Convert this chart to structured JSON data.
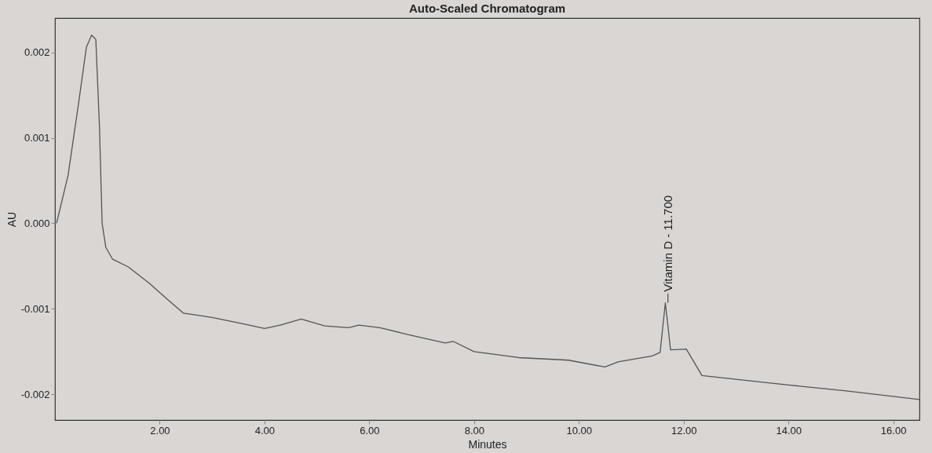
{
  "chart_data": {
    "type": "line",
    "title": "Auto-Scaled Chromatogram",
    "xlabel": "Minutes",
    "ylabel": "AU",
    "xlim": [
      0,
      16.5
    ],
    "ylim": [
      -0.0023,
      0.0024
    ],
    "xticks": [
      {
        "value": 2,
        "label": "2.00"
      },
      {
        "value": 4,
        "label": "4.00"
      },
      {
        "value": 6,
        "label": "6.00"
      },
      {
        "value": 8,
        "label": "8.00"
      },
      {
        "value": 10,
        "label": "10.00"
      },
      {
        "value": 12,
        "label": "12.00"
      },
      {
        "value": 14,
        "label": "14.00"
      },
      {
        "value": 16,
        "label": "16.00"
      }
    ],
    "yticks": [
      {
        "value": -0.002,
        "label": "-0.002"
      },
      {
        "value": -0.001,
        "label": "-0.001"
      },
      {
        "value": 0,
        "label": "0.000"
      },
      {
        "value": 0.001,
        "label": "0.001"
      },
      {
        "value": 0.002,
        "label": "0.002"
      }
    ],
    "grid": false,
    "line_style": "solid",
    "annotations": [
      {
        "text": "Vitamin D - 11.700",
        "x": 11.7,
        "y": -0.00093
      }
    ],
    "series": [
      {
        "color": "#555555",
        "x": [
          0.03,
          0.25,
          0.45,
          0.6,
          0.7,
          0.78,
          0.85,
          0.9,
          0.97,
          1.1,
          1.4,
          1.8,
          2.15,
          2.45,
          3.0,
          3.55,
          4.0,
          4.3,
          4.7,
          5.15,
          5.6,
          5.8,
          6.2,
          6.8,
          7.45,
          7.6,
          8.0,
          8.85,
          9.8,
          10.5,
          10.75,
          11.4,
          11.55,
          11.65,
          11.75,
          12.05,
          12.35,
          13.1,
          14.0,
          15.1,
          16.5
        ],
        "values": [
          0.0,
          0.00056,
          0.0014,
          0.00206,
          0.0022,
          0.00215,
          0.00112,
          0.0,
          -0.00028,
          -0.00042,
          -0.00051,
          -0.0007,
          -0.00089,
          -0.00105,
          -0.0011,
          -0.00117,
          -0.00123,
          -0.00119,
          -0.00112,
          -0.0012,
          -0.00122,
          -0.00119,
          -0.00122,
          -0.00131,
          -0.0014,
          -0.00138,
          -0.0015,
          -0.00157,
          -0.0016,
          -0.00168,
          -0.00162,
          -0.00155,
          -0.00151,
          -0.00093,
          -0.00148,
          -0.00147,
          -0.00178,
          -0.00183,
          -0.00189,
          -0.00196,
          -0.00206
        ]
      }
    ]
  }
}
